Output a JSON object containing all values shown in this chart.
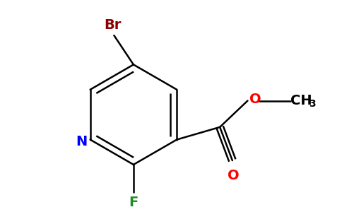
{
  "bg_color": "#ffffff",
  "atom_colors": {
    "Br": "#8B0000",
    "N": "#0000FF",
    "O": "#FF0000",
    "F": "#228B22",
    "C": "#000000"
  },
  "figsize": [
    4.84,
    3.0
  ],
  "dpi": 100,
  "lw": 1.8,
  "font_size": 13
}
